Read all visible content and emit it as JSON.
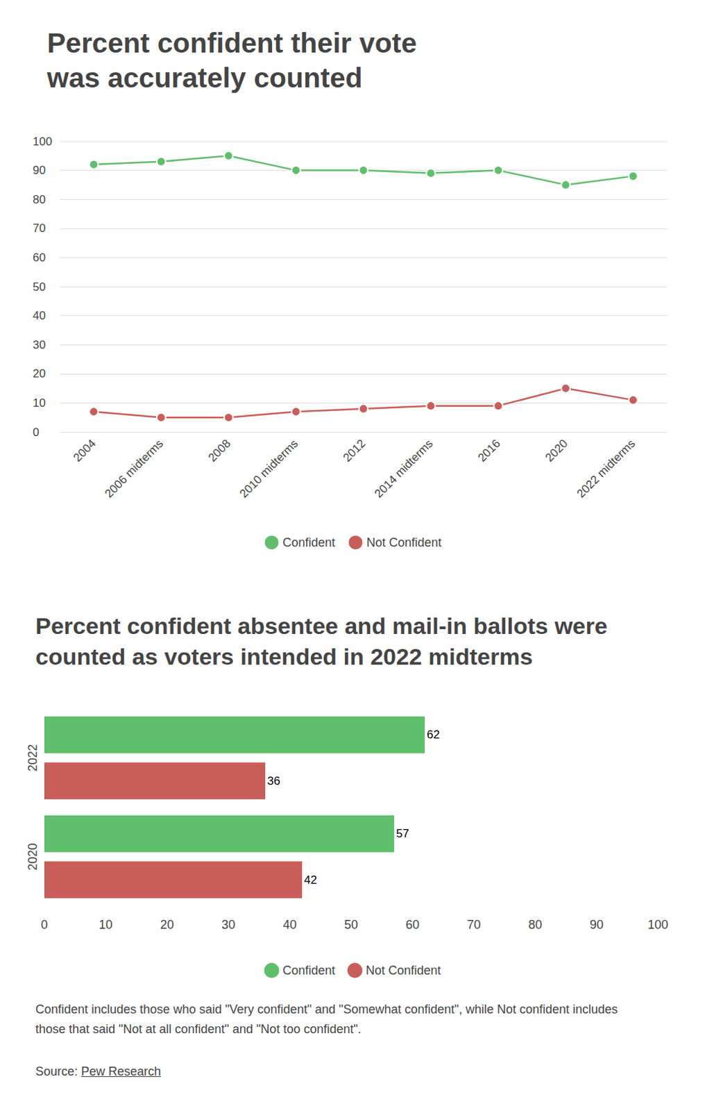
{
  "chart_data": [
    {
      "type": "line",
      "title": "Percent confident their vote was accurately counted",
      "categories": [
        "2004",
        "2006 midterms",
        "2008",
        "2010 midterms",
        "2012",
        "2014 midterms",
        "2016",
        "2020",
        "2022 midterms"
      ],
      "series": [
        {
          "name": "Confident",
          "color": "#5fbf6c",
          "values": [
            92,
            93,
            95,
            90,
            90,
            89,
            90,
            85,
            88
          ]
        },
        {
          "name": "Not Confident",
          "color": "#c95d5a",
          "values": [
            7,
            5,
            5,
            7,
            8,
            9,
            9,
            15,
            11
          ]
        }
      ],
      "ylim": [
        0,
        100
      ],
      "yticks": [
        0,
        10,
        20,
        30,
        40,
        50,
        60,
        70,
        80,
        90,
        100
      ],
      "grid": true,
      "marker": "circle",
      "legend": "bottom"
    },
    {
      "type": "bar",
      "orientation": "horizontal",
      "title": "Percent confident absentee and mail-in ballots were counted as voters intended in 2022 midterms",
      "categories": [
        "2022",
        "2020"
      ],
      "series": [
        {
          "name": "Confident",
          "color": "#5fbf6c",
          "values": [
            62,
            57
          ]
        },
        {
          "name": "Not Confident",
          "color": "#c95d5a",
          "values": [
            36,
            42
          ]
        }
      ],
      "xlim": [
        0,
        100
      ],
      "xticks": [
        0,
        10,
        20,
        30,
        40,
        50,
        60,
        70,
        80,
        90,
        100
      ],
      "grid": false,
      "data_labels": true,
      "legend": "bottom"
    }
  ],
  "note": "Confident includes those who said \"Very confident\" and \"Somewhat confident\", while Not confident includes those that said \"Not at all confident\" and \"Not too confident\".",
  "source_label": "Source:",
  "source": "Pew Research"
}
